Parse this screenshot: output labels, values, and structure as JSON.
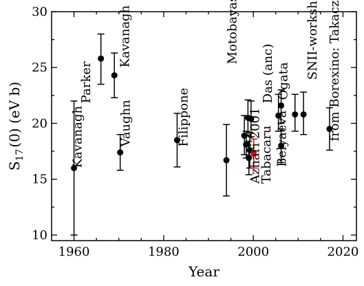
{
  "chart_data": {
    "type": "scatter",
    "xlabel": "Year",
    "ylabel_main": "S",
    "ylabel_sub": "17",
    "ylabel_rest": "(0) (eV b)",
    "xlim": [
      1955,
      2023
    ],
    "ylim": [
      9.5,
      30
    ],
    "xticks": [
      1960,
      1980,
      2000,
      2020
    ],
    "yticks": [
      10,
      15,
      20,
      25,
      30
    ],
    "grid": false,
    "accent_color": "#e00000",
    "points": [
      {
        "x": 1960,
        "y": 16.0,
        "err": [
          10.0,
          22.0
        ]
      },
      {
        "x": 1966,
        "y": 25.8,
        "err": [
          23.5,
          28.0
        ]
      },
      {
        "x": 1969,
        "y": 24.3,
        "err": [
          22.3,
          26.3
        ]
      },
      {
        "x": 1970.3,
        "y": 17.4,
        "err": [
          15.8,
          19.0
        ]
      },
      {
        "x": 1983,
        "y": 18.5,
        "err": [
          16.1,
          20.9
        ]
      },
      {
        "x": 1994,
        "y": 16.7,
        "err": [
          13.5,
          19.9
        ]
      },
      {
        "x": 1998,
        "y": 18.9,
        "err": [
          17.2,
          20.7
        ]
      },
      {
        "x": 1998.4,
        "y": 18.1,
        "err": [
          16.9,
          19.3
        ]
      },
      {
        "x": 1998.8,
        "y": 20.5,
        "err": [
          18.9,
          22.1
        ]
      },
      {
        "x": 1999.2,
        "y": 17.6,
        "err": [
          16.0,
          19.2
        ]
      },
      {
        "x": 1999.0,
        "y": 16.9,
        "err": [
          15.4,
          18.4
        ]
      },
      {
        "x": 1999.5,
        "y": 20.4,
        "err": [
          18.8,
          22.0
        ]
      },
      {
        "x": 2000.1,
        "y": 17.3,
        "err": [
          16.0,
          18.6
        ],
        "highlight": true
      },
      {
        "x": 2005.6,
        "y": 20.7,
        "err": [
          19.3,
          22.6
        ]
      },
      {
        "x": 2006.2,
        "y": 21.6,
        "err": [
          20.0,
          23.0
        ]
      },
      {
        "x": 2006.2,
        "y": 18.0,
        "err": [
          16.5,
          19.5
        ]
      },
      {
        "x": 2009.3,
        "y": 20.8,
        "err": [
          19.3,
          22.6
        ]
      },
      {
        "x": 2011.2,
        "y": 20.8,
        "err": [
          19.0,
          22.8
        ]
      },
      {
        "x": 2017,
        "y": 19.5,
        "err": [
          17.6,
          21.4
        ]
      }
    ],
    "labels": [
      {
        "text": "Kavanagh",
        "x": 1961.7,
        "y": 16.0
      },
      {
        "text": "Parker",
        "x": 1963.6,
        "y": 21.8
      },
      {
        "text": "Kavanagh",
        "x": 1972.3,
        "y": 25.0
      },
      {
        "text": "Vaughn",
        "x": 1972.4,
        "y": 17.9
      },
      {
        "text": "Filippone",
        "x": 1985.3,
        "y": 17.9
      },
      {
        "text": "Motobayashi",
        "x": 1996.2,
        "y": 25.3
      },
      {
        "text": "Azhari 2001",
        "x": 2001.3,
        "y": 14.6,
        "highlight": true
      },
      {
        "text": "Das (anc)",
        "x": 2004.1,
        "y": 21.8
      },
      {
        "text": "Ogata",
        "x": 2007.6,
        "y": 22.1
      },
      {
        "text": "Tabacaru",
        "x": 2003.8,
        "y": 14.6
      },
      {
        "text": "Belyaeva",
        "x": 2007.3,
        "y": 16.1
      },
      {
        "text": "SNII-workshop",
        "x": 2014.1,
        "y": 23.9
      },
      {
        "text": "from Borexino: Takacz",
        "x": 2019.0,
        "y": 18.4
      }
    ]
  }
}
